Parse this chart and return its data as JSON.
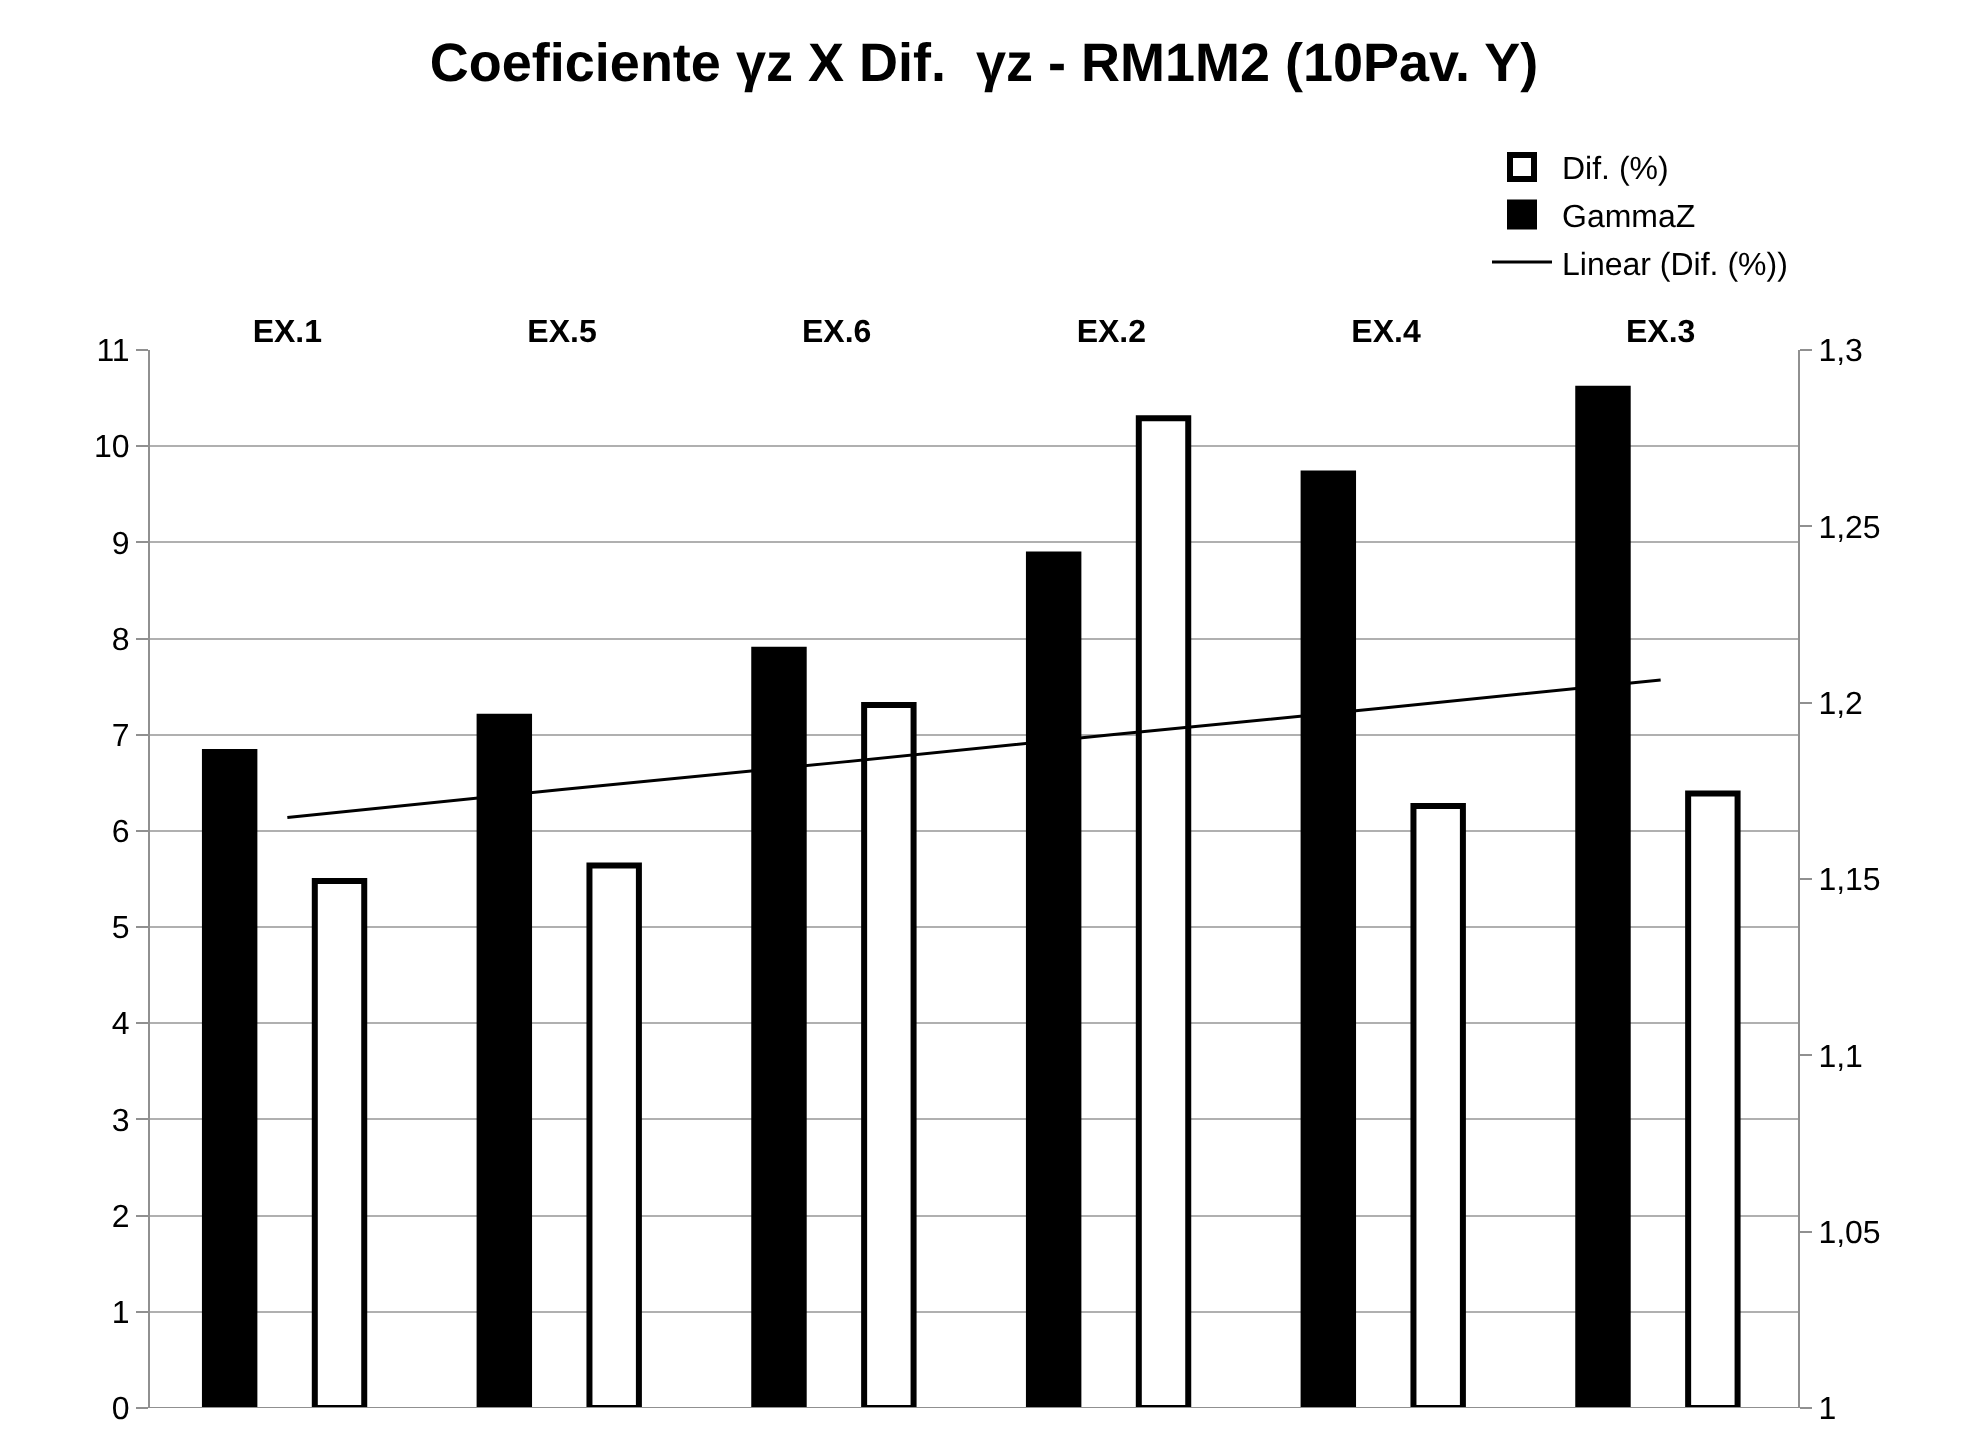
{
  "chart_data": {
    "type": "bar",
    "title": "Coeficiente γz X Dif.  γz - RM1M2 (10Pav. Y)",
    "categories": [
      "EX.1",
      "EX.5",
      "EX.6",
      "EX.2",
      "EX.4",
      "EX.3"
    ],
    "series": [
      {
        "name": "Dif. (%)",
        "color": "#ffffff",
        "values": [
          5.48,
          5.64,
          7.31,
          10.29,
          6.26,
          6.39
        ]
      },
      {
        "name": "GammaZ",
        "color": "#000000",
        "axis": "y2",
        "values": [
          1.186,
          1.196,
          1.215,
          1.242,
          1.265,
          1.289
        ]
      },
      {
        "name": "Linear (Dif. (%))",
        "type": "line",
        "color": "#000000",
        "marker": "none",
        "line_style": "solid",
        "values": [
          6.14,
          6.43,
          6.71,
          7.0,
          7.28,
          7.57
        ]
      }
    ],
    "ylim": [
      0,
      11
    ],
    "yticks": [
      0,
      1,
      2,
      3,
      4,
      5,
      6,
      7,
      8,
      9,
      10,
      11
    ],
    "y2lim": [
      1,
      1.3
    ],
    "y2ticks": [
      {
        "value": 1,
        "label": "1"
      },
      {
        "value": 1.05,
        "label": "1,05"
      },
      {
        "value": 1.1,
        "label": "1,1"
      },
      {
        "value": 1.15,
        "label": "1,15"
      },
      {
        "value": 1.2,
        "label": "1,2"
      },
      {
        "value": 1.25,
        "label": "1,25"
      },
      {
        "value": 1.3,
        "label": "1,3"
      }
    ],
    "grid": "y",
    "legend": "top right"
  }
}
